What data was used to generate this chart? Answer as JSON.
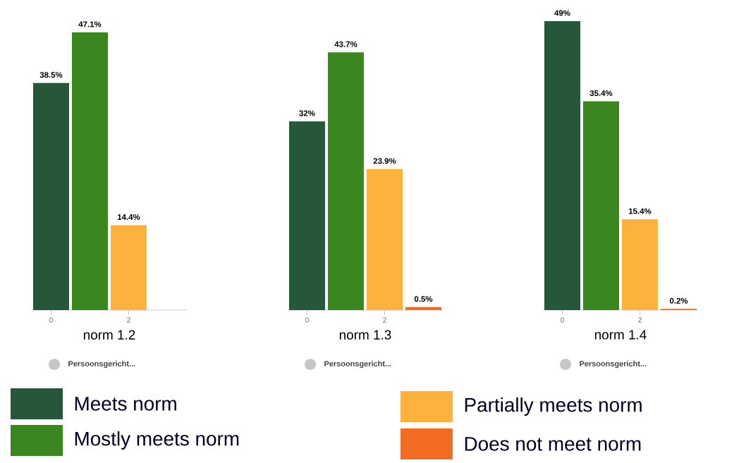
{
  "chart_data": [
    {
      "type": "bar",
      "xlabel": "norm 1.2",
      "annotations": [
        "Persoonsgericht..."
      ],
      "xlim": [
        -0.5,
        3.5
      ],
      "xticks": [
        0,
        2
      ],
      "legend": "bottom",
      "series": [
        {
          "name": "Meets norm",
          "color": "#255738",
          "x": [
            0
          ],
          "values": [
            38.5
          ],
          "value_labels": [
            "38.5%"
          ]
        },
        {
          "name": "Mostly meets norm",
          "color": "#3a871f",
          "x": [
            1
          ],
          "values": [
            47.1
          ],
          "value_labels": [
            "47.1%"
          ]
        },
        {
          "name": "Partially meets norm",
          "color": "#fdb23e",
          "x": [
            2
          ],
          "values": [
            14.4
          ],
          "value_labels": [
            "14.4%"
          ]
        },
        {
          "name": "Does not meet norm",
          "color": "#f26b21"
        }
      ]
    },
    {
      "type": "bar",
      "xlabel": "norm 1.3",
      "annotations": [
        "Persoonsgericht..."
      ],
      "xlim": [
        -0.5,
        3.5
      ],
      "xticks": [
        0,
        2
      ],
      "series": [
        {
          "color": "#255738",
          "x": [
            0
          ],
          "values": [
            32
          ],
          "value_labels": [
            "32%"
          ]
        },
        {
          "color": "#3a871f",
          "x": [
            1
          ],
          "values": [
            43.7
          ],
          "value_labels": [
            "43.7%"
          ]
        },
        {
          "color": "#fdb23e",
          "x": [
            2
          ],
          "values": [
            23.9
          ],
          "value_labels": [
            "23.9%"
          ]
        },
        {
          "color": "#f26b21",
          "x": [
            3
          ],
          "values": [
            0.5
          ],
          "value_labels": [
            "0.5%"
          ]
        }
      ]
    },
    {
      "type": "bar",
      "xlabel": "norm 1.4",
      "annotations": [
        "Persoonsgericht..."
      ],
      "xlim": [
        -0.5,
        3.5
      ],
      "xticks": [
        0,
        2
      ],
      "series": [
        {
          "color": "#255738",
          "x": [
            0
          ],
          "values": [
            49
          ],
          "value_labels": [
            "49%"
          ]
        },
        {
          "color": "#3a871f",
          "x": [
            1
          ],
          "values": [
            35.4
          ],
          "value_labels": [
            "35.4%"
          ]
        },
        {
          "color": "#fdb23e",
          "x": [
            2
          ],
          "values": [
            15.4
          ],
          "value_labels": [
            "15.4%"
          ]
        },
        {
          "color": "#f26b21",
          "x": [
            3
          ],
          "values": [
            0.2
          ],
          "value_labels": [
            "0.2%"
          ]
        }
      ]
    }
  ]
}
